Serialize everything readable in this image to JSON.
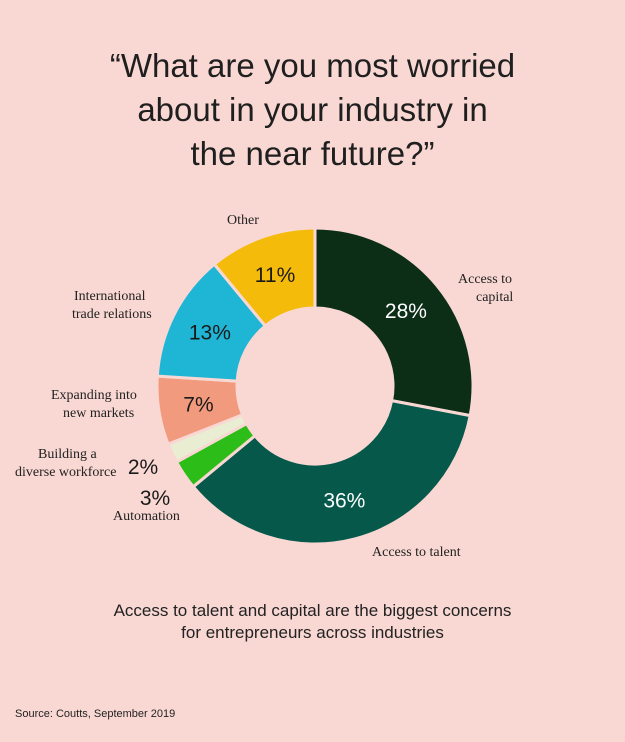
{
  "title_lines": [
    "“What are you most worried",
    "about in your industry in",
    "the near future?”"
  ],
  "chart_data": {
    "type": "pie",
    "donut": true,
    "title": "“What are you most worried about in your industry in the near future?”",
    "categories": [
      "Access to capital",
      "Access to talent",
      "Automation",
      "Building a diverse workforce",
      "Expanding into new markets",
      "International trade relations",
      "Other"
    ],
    "values": [
      28,
      36,
      3,
      2,
      7,
      13,
      11
    ],
    "value_labels": [
      "28%",
      "36%",
      "3%",
      "2%",
      "7%",
      "13%",
      "11%"
    ],
    "colors": [
      "#0c2e17",
      "#05584a",
      "#2dbd19",
      "#e9edd2",
      "#f29a7d",
      "#1fb5d5",
      "#f5bb0b"
    ],
    "value_label_colors": [
      "#ffffff",
      "#ffffff",
      "#1a1a1a",
      "#1a1a1a",
      "#1a1a1a",
      "#1a1a1a",
      "#1a1a1a"
    ]
  },
  "slice_labels": {
    "capital": [
      "Access to",
      "capital"
    ],
    "talent": [
      "Access to talent"
    ],
    "automation": [
      "Automation"
    ],
    "workforce": [
      "Building a",
      "diverse workforce"
    ],
    "markets": [
      "Expanding into",
      "new markets"
    ],
    "trade": [
      "International",
      "trade relations"
    ],
    "other": [
      "Other"
    ]
  },
  "caption_lines": [
    "Access to talent and capital are the biggest concerns",
    "for entrepreneurs across industries"
  ],
  "source": "Source: Coutts, September 2019"
}
